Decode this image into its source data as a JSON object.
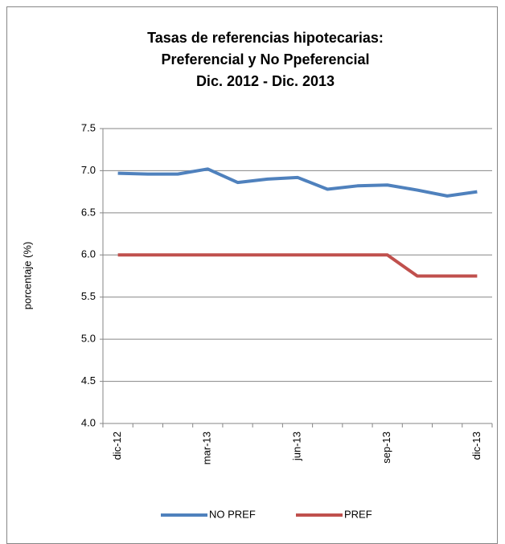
{
  "chart_data": {
    "type": "line",
    "title": [
      "Tasas de referencias hipotecarias:",
      "Preferencial y No Ppeferencial",
      "Dic. 2012 - Dic. 2013"
    ],
    "ylabel": "porcentaje (%)",
    "categories": [
      "dic-12",
      null,
      null,
      "mar-13",
      null,
      null,
      "jun-13",
      null,
      null,
      "sep-13",
      null,
      null,
      "dic-13"
    ],
    "series": [
      {
        "name": "NO PREF",
        "color": "#4f81bd",
        "values": [
          6.97,
          6.96,
          6.96,
          7.02,
          6.86,
          6.9,
          6.92,
          6.78,
          6.82,
          6.83,
          6.77,
          6.7,
          6.75
        ]
      },
      {
        "name": "PREF",
        "color": "#c0504d",
        "values": [
          6.0,
          6.0,
          6.0,
          6.0,
          6.0,
          6.0,
          6.0,
          6.0,
          6.0,
          6.0,
          5.75,
          5.75,
          5.75
        ]
      }
    ],
    "ylim": [
      4.0,
      7.5
    ],
    "yticks": [
      {
        "value": 4,
        "label": "4.0"
      },
      4.5,
      {
        "value": 5,
        "label": "5.0"
      },
      5.5,
      {
        "value": 6,
        "label": "6.0"
      },
      6.5,
      {
        "value": 7,
        "label": "7.0"
      },
      7.5
    ],
    "grid": true,
    "legend": "bottom"
  }
}
